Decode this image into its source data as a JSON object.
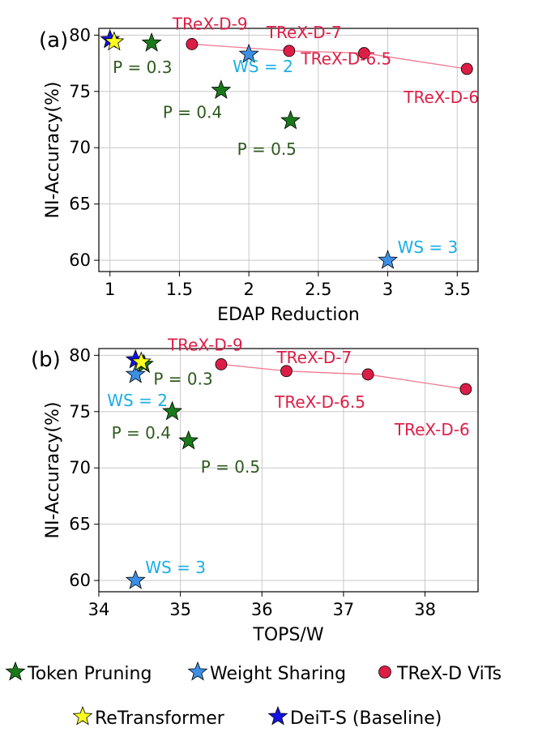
{
  "chart_data": [
    {
      "type": "scatter",
      "panel_label": "(a)",
      "xlabel": "EDAP Reduction",
      "ylabel": "NI-Accuracy(%)",
      "xlim": [
        0.92,
        3.65
      ],
      "ylim": [
        59.0,
        80.6
      ],
      "xticks": [
        1,
        1.5,
        2,
        2.5,
        3,
        3.5
      ],
      "xtick_labels": [
        "1",
        "1.5",
        "2",
        "2.5",
        "3",
        "3.5"
      ],
      "yticks": [
        60,
        65,
        70,
        75,
        80
      ],
      "ytick_labels": [
        "60",
        "65",
        "70",
        "75",
        "80"
      ],
      "grid": true,
      "series": [
        {
          "name": "Token Pruning",
          "marker": "star",
          "color": "#1a7a1a",
          "points": [
            {
              "x": 1.3,
              "y": 79.3,
              "label": "P = 0.3"
            },
            {
              "x": 1.8,
              "y": 75.1,
              "label": "P = 0.4"
            },
            {
              "x": 2.3,
              "y": 72.4,
              "label": "P = 0.5"
            }
          ]
        },
        {
          "name": "Weight Sharing",
          "marker": "star",
          "color": "#3c8fe6",
          "points": [
            {
              "x": 2.0,
              "y": 78.3,
              "label": "WS = 2"
            },
            {
              "x": 3.0,
              "y": 60.0,
              "label": "WS = 3"
            }
          ]
        },
        {
          "name": "TReX-D ViTs",
          "marker": "circle",
          "color": "#dc1e46",
          "connected": true,
          "points": [
            {
              "x": 1.59,
              "y": 79.2,
              "label": "TReX-D-9"
            },
            {
              "x": 2.29,
              "y": 78.6,
              "label": "TReX-D-7"
            },
            {
              "x": 2.83,
              "y": 78.4,
              "label": "TReX-D-6.5"
            },
            {
              "x": 3.57,
              "y": 77.0,
              "label": "TReX-D-6"
            }
          ]
        },
        {
          "name": "DeiT-S (Baseline)",
          "marker": "star",
          "color": "#1414e6",
          "points": [
            {
              "x": 1.0,
              "y": 79.6
            }
          ]
        },
        {
          "name": "ReTransformer",
          "marker": "star",
          "color": "#ffff1e",
          "points": [
            {
              "x": 1.03,
              "y": 79.4
            }
          ]
        }
      ]
    },
    {
      "type": "scatter",
      "panel_label": "(b)",
      "xlabel": "TOPS/W",
      "ylabel": "NI-Accuracy(%)",
      "xlim": [
        34.0,
        38.65
      ],
      "ylim": [
        59.0,
        80.6
      ],
      "xticks": [
        34,
        35,
        36,
        37,
        38
      ],
      "xtick_labels": [
        "34",
        "35",
        "36",
        "37",
        "38"
      ],
      "yticks": [
        60,
        65,
        70,
        75,
        80
      ],
      "ytick_labels": [
        "60",
        "65",
        "70",
        "75",
        "80"
      ],
      "grid": true,
      "series": [
        {
          "name": "Token Pruning",
          "marker": "star",
          "color": "#1a7a1a",
          "points": [
            {
              "x": 34.55,
              "y": 79.2,
              "label": "P = 0.3"
            },
            {
              "x": 34.9,
              "y": 75.0,
              "label": "P = 0.4"
            },
            {
              "x": 35.1,
              "y": 72.4,
              "label": "P = 0.5"
            }
          ]
        },
        {
          "name": "Weight Sharing",
          "marker": "star",
          "color": "#3c8fe6",
          "points": [
            {
              "x": 34.45,
              "y": 78.3,
              "label": "WS = 2"
            },
            {
              "x": 34.45,
              "y": 60.0,
              "label": "WS = 3"
            }
          ]
        },
        {
          "name": "TReX-D ViTs",
          "marker": "circle",
          "color": "#dc1e46",
          "connected": true,
          "points": [
            {
              "x": 35.5,
              "y": 79.2,
              "label": "TReX-D-9"
            },
            {
              "x": 36.3,
              "y": 78.6,
              "label": "TReX-D-7"
            },
            {
              "x": 37.3,
              "y": 78.3,
              "label": "TReX-D-6.5"
            },
            {
              "x": 38.5,
              "y": 77.0,
              "label": "TReX-D-6"
            }
          ]
        },
        {
          "name": "DeiT-S (Baseline)",
          "marker": "star",
          "color": "#1414e6",
          "points": [
            {
              "x": 34.45,
              "y": 79.6
            }
          ]
        },
        {
          "name": "ReTransformer",
          "marker": "star",
          "color": "#ffff1e",
          "points": [
            {
              "x": 34.52,
              "y": 79.4
            }
          ]
        }
      ]
    }
  ],
  "legend": {
    "items": [
      {
        "name": "Token Pruning",
        "marker": "star",
        "color": "#1a7a1a"
      },
      {
        "name": "Weight Sharing",
        "marker": "star",
        "color": "#3c8fe6"
      },
      {
        "name": "TReX-D ViTs",
        "marker": "circle",
        "color": "#dc1e46"
      },
      {
        "name": "ReTransformer",
        "marker": "star",
        "color": "#ffff1e"
      },
      {
        "name": "DeiT-S (Baseline)",
        "marker": "star",
        "color": "#1414e6"
      }
    ]
  },
  "colors": {
    "pruning_text": "#2e5a1e",
    "sharing_text": "#1aaee6",
    "trex_text": "#dc1e46",
    "trex_line": "#f07890",
    "grid": "#c8c8c8"
  }
}
